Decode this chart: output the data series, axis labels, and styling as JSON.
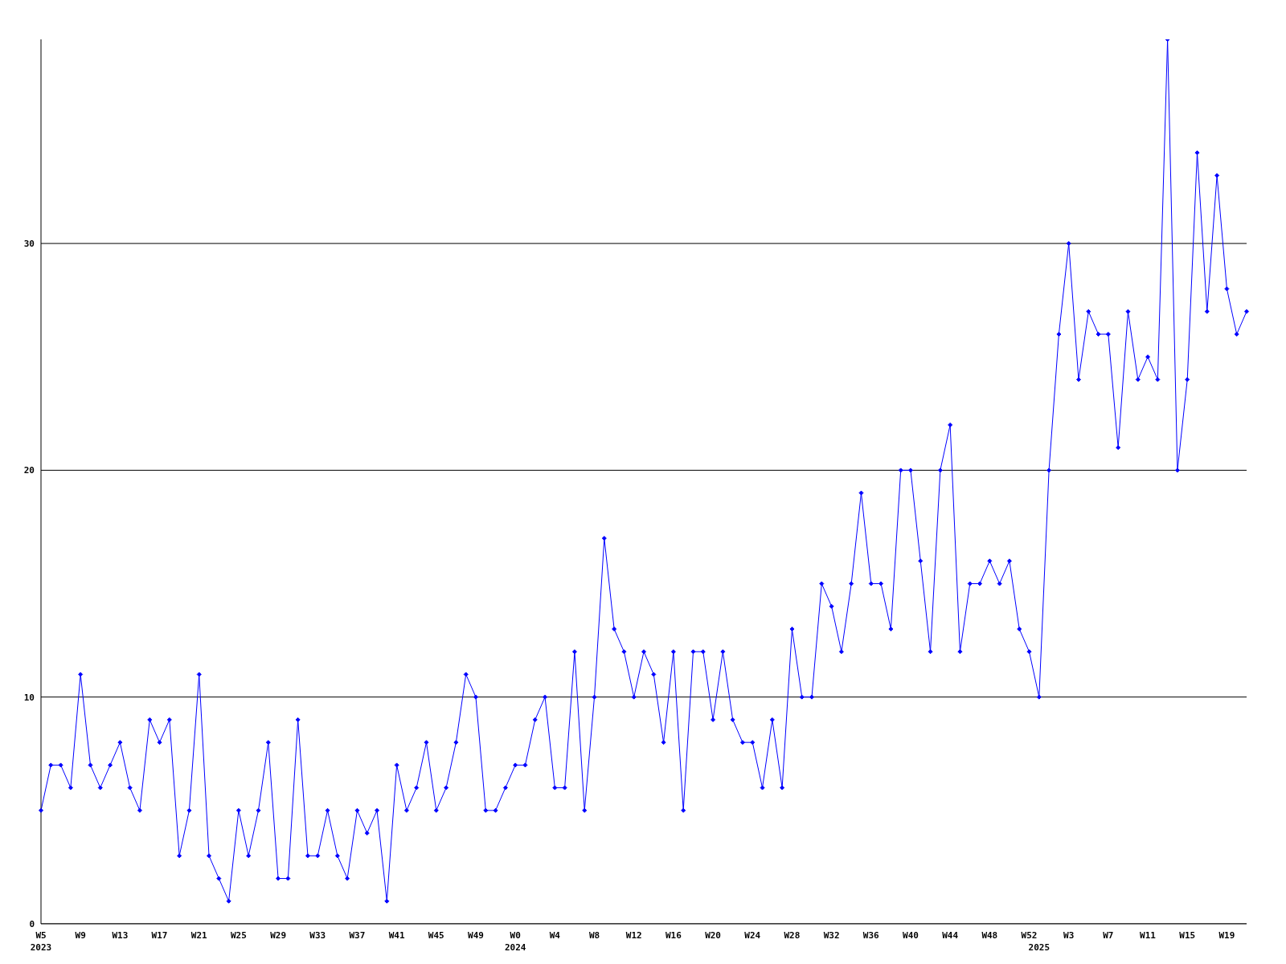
{
  "chart_data": {
    "type": "line",
    "categories": [
      "W5\n2023",
      null,
      null,
      null,
      "W9",
      null,
      null,
      null,
      "W13",
      null,
      null,
      null,
      "W17",
      null,
      null,
      null,
      "W21",
      null,
      null,
      null,
      "W25",
      null,
      null,
      null,
      "W29",
      null,
      null,
      null,
      "W33",
      null,
      null,
      null,
      "W37",
      null,
      null,
      null,
      "W41",
      null,
      null,
      null,
      "W45",
      null,
      null,
      null,
      "W49",
      null,
      null,
      null,
      "W0\n2024",
      null,
      null,
      null,
      "W4",
      null,
      null,
      null,
      "W8",
      null,
      null,
      null,
      "W12",
      null,
      null,
      null,
      "W16",
      null,
      null,
      null,
      "W20",
      null,
      null,
      null,
      "W24",
      null,
      null,
      null,
      "W28",
      null,
      null,
      null,
      "W32",
      null,
      null,
      null,
      "W36",
      null,
      null,
      null,
      "W40",
      null,
      null,
      null,
      "W44",
      null,
      null,
      null,
      "W48",
      null,
      null,
      null,
      "W52",
      "\n2025",
      null,
      null,
      "W3",
      null,
      null,
      null,
      "W7",
      null,
      null,
      null,
      "W11",
      null,
      null,
      null,
      "W15",
      null,
      null,
      null,
      "W19",
      null,
      null
    ],
    "series": [
      {
        "color": "#0000ff",
        "values": [
          5,
          7,
          7,
          6,
          11,
          7,
          6,
          7,
          8,
          6,
          5,
          9,
          8,
          9,
          3,
          5,
          11,
          3,
          2,
          1,
          5,
          3,
          5,
          8,
          2,
          2,
          9,
          3,
          3,
          5,
          3,
          2,
          5,
          4,
          5,
          1,
          7,
          5,
          6,
          8,
          5,
          6,
          8,
          11,
          10,
          5,
          5,
          6,
          7,
          7,
          9,
          10,
          6,
          6,
          12,
          5,
          10,
          17,
          13,
          12,
          10,
          12,
          11,
          8,
          12,
          5,
          12,
          12,
          9,
          12,
          9,
          8,
          8,
          6,
          9,
          6,
          13,
          10,
          10,
          15,
          14,
          12,
          15,
          19,
          15,
          15,
          13,
          20,
          20,
          16,
          12,
          20,
          22,
          12,
          15,
          15,
          16,
          15,
          16,
          13,
          12,
          10,
          20,
          26,
          30,
          24,
          27,
          26,
          26,
          21,
          27,
          24,
          25,
          24,
          39,
          20,
          24,
          34,
          27,
          33,
          28,
          26,
          27
        ]
      }
    ],
    "ylim": [
      0,
      39
    ],
    "yticks": [
      0,
      10,
      20,
      30
    ],
    "grid": "y",
    "marker": "diamond",
    "line_style": "solid"
  }
}
